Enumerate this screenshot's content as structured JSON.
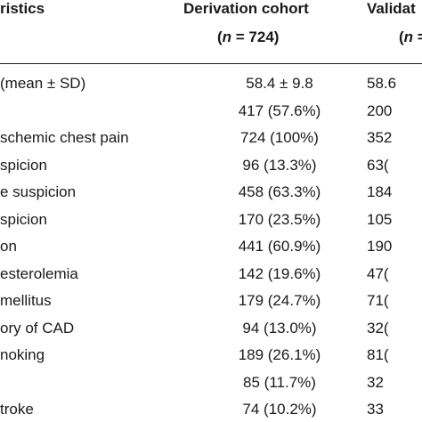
{
  "header": {
    "characteristics": "ristics",
    "derivation_title": "Derivation cohort",
    "derivation_n": "(n = 724)",
    "validation_title": "Validat",
    "validation_n": "(n ="
  },
  "rows": [
    {
      "label": "(mean ± SD)",
      "derivation": "58.4 ± 9.8",
      "validation": "58.6"
    },
    {
      "label": "",
      "derivation": "417 (57.6%)",
      "validation": "200"
    },
    {
      "label": "schemic chest pain",
      "derivation": "724 (100%)",
      "validation": "352"
    },
    {
      "label": "spicion",
      "derivation": "96 (13.3%)",
      "validation": "63("
    },
    {
      "label": "e suspicion",
      "derivation": "458 (63.3%)",
      "validation": "184"
    },
    {
      "label": "spicion",
      "derivation": "170 (23.5%)",
      "validation": "105"
    },
    {
      "label": "on",
      "derivation": "441 (60.9%)",
      "validation": "190"
    },
    {
      "label": "esterolemia",
      "derivation": "142 (19.6%)",
      "validation": "47("
    },
    {
      "label": "mellitus",
      "derivation": "179 (24.7%)",
      "validation": "71("
    },
    {
      "label": "ory of CAD",
      "derivation": "94 (13.0%)",
      "validation": "32("
    },
    {
      "label": "noking",
      "derivation": "189 (26.1%)",
      "validation": "81("
    },
    {
      "label": "",
      "derivation": "85 (11.7%)",
      "validation": "32"
    },
    {
      "label": "troke",
      "derivation": "74 (10.2%)",
      "validation": "33"
    }
  ]
}
